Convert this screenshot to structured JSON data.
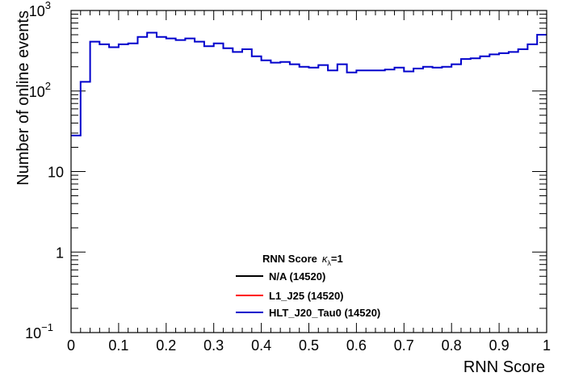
{
  "chart_data": {
    "type": "line",
    "xlabel": "RNN Score",
    "ylabel": "Number of online events",
    "xlim": [
      0,
      1
    ],
    "ylim": [
      0.1,
      1000
    ],
    "yscale": "log",
    "grid": false,
    "legend_placement": "bottom-center",
    "x_ticks": [
      "0",
      "0.1",
      "0.2",
      "0.3",
      "0.4",
      "0.5",
      "0.6",
      "0.7",
      "0.8",
      "0.9",
      "1"
    ],
    "y_ticks": [
      {
        "value": 0.1,
        "base": "10",
        "exp": "−1"
      },
      {
        "value": 1,
        "base": "1",
        "exp": ""
      },
      {
        "value": 10,
        "base": "10",
        "exp": ""
      },
      {
        "value": 100,
        "base": "10",
        "exp": "2"
      },
      {
        "value": 1000,
        "base": "10",
        "exp": "3"
      }
    ],
    "bin_edges": [
      0,
      0.02,
      0.04,
      0.06,
      0.08,
      0.1,
      0.12,
      0.14,
      0.16,
      0.18,
      0.2,
      0.22,
      0.24,
      0.26,
      0.28,
      0.3,
      0.32,
      0.34,
      0.36,
      0.38,
      0.4,
      0.42,
      0.44,
      0.46,
      0.48,
      0.5,
      0.52,
      0.54,
      0.56,
      0.58,
      0.6,
      0.62,
      0.64,
      0.66,
      0.68,
      0.7,
      0.72,
      0.74,
      0.76,
      0.78,
      0.8,
      0.82,
      0.84,
      0.86,
      0.88,
      0.9,
      0.92,
      0.94,
      0.96,
      0.98,
      1.0
    ],
    "counts": [
      28,
      130,
      410,
      380,
      350,
      380,
      390,
      470,
      530,
      470,
      450,
      430,
      450,
      410,
      360,
      390,
      340,
      305,
      330,
      270,
      240,
      225,
      230,
      215,
      200,
      195,
      210,
      180,
      215,
      170,
      180,
      180,
      180,
      185,
      195,
      175,
      190,
      200,
      195,
      200,
      215,
      250,
      255,
      270,
      285,
      295,
      305,
      330,
      380,
      500
    ],
    "legend_title": "RNN Score",
    "legend_title_symbol": "κ",
    "legend_title_subscript": "λ",
    "legend_title_suffix": "=1",
    "series": [
      {
        "name": "N/A (14520)",
        "color": "#000000"
      },
      {
        "name": "L1_J25 (14520)",
        "color": "#ff0000"
      },
      {
        "name": "HLT_J20_Tau0 (14520)",
        "color": "#0000cc"
      }
    ]
  }
}
